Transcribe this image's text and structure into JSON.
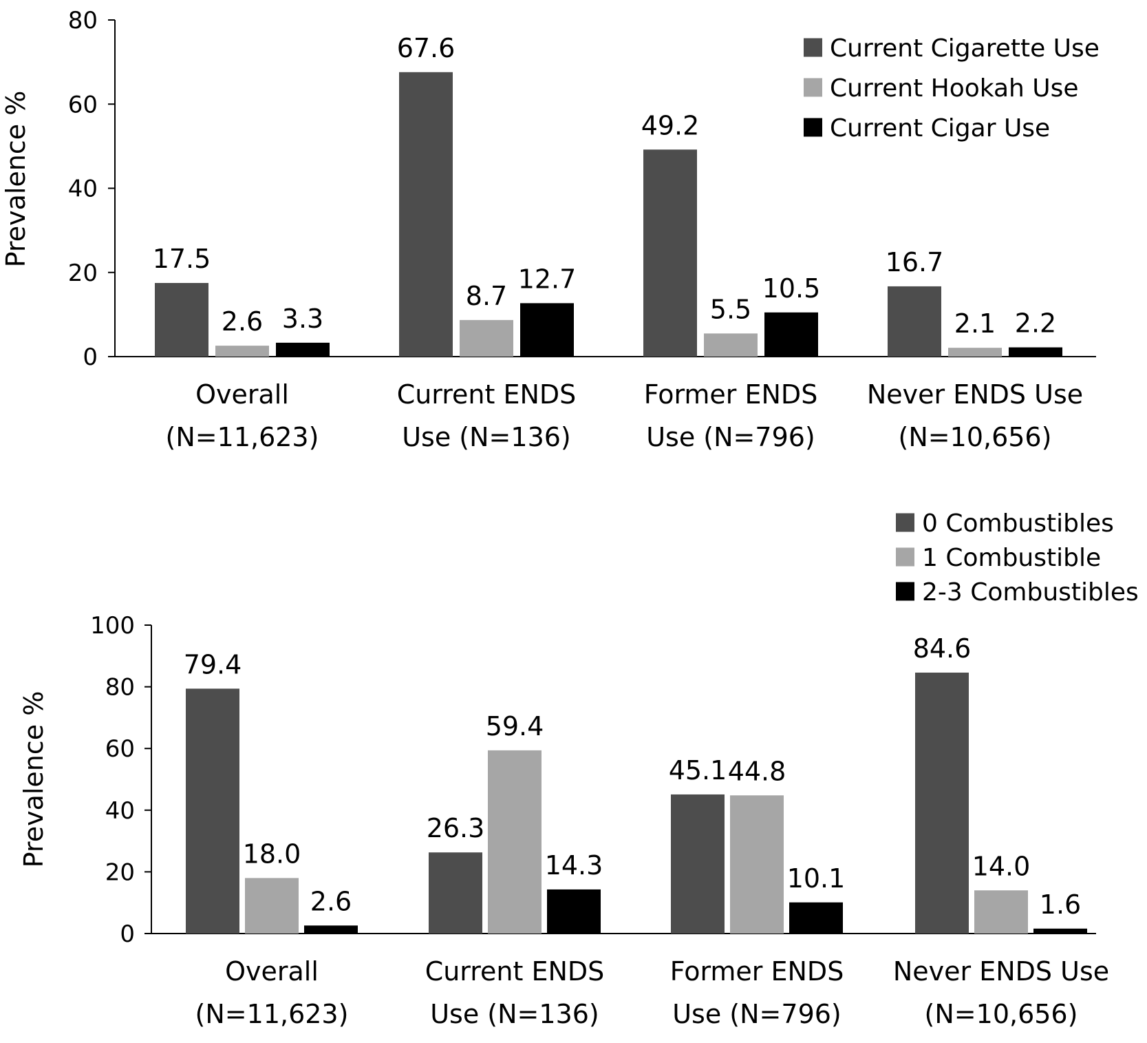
{
  "chart_data": [
    {
      "type": "bar",
      "ylabel": "Prevalence %",
      "ylim": [
        0,
        80
      ],
      "yticks": [
        0,
        20,
        40,
        60,
        80
      ],
      "grid": false,
      "legend_position": "top-right",
      "categories": [
        [
          "Overall",
          "(N=11,623)"
        ],
        [
          "Current ENDS",
          "Use (N=136)"
        ],
        [
          "Former ENDS",
          "Use (N=796)"
        ],
        [
          "Never ENDS Use",
          "(N=10,656)"
        ]
      ],
      "series": [
        {
          "name": "Current Cigarette Use",
          "color": "#4d4d4d",
          "values": [
            17.5,
            67.6,
            49.2,
            16.7
          ],
          "labels": [
            "17.5",
            "67.6",
            "49.2",
            "16.7"
          ]
        },
        {
          "name": "Current Hookah Use",
          "color": "#a6a6a6",
          "values": [
            2.6,
            8.7,
            5.5,
            2.1
          ],
          "labels": [
            "2.6",
            "8.7",
            "5.5",
            "2.1"
          ]
        },
        {
          "name": "Current Cigar Use",
          "color": "#000000",
          "values": [
            3.3,
            12.7,
            10.5,
            2.2
          ],
          "labels": [
            "3.3",
            "12.7",
            "10.5",
            "2.2"
          ]
        }
      ]
    },
    {
      "type": "bar",
      "ylabel": "Prevalence %",
      "ylim": [
        0,
        100
      ],
      "yticks": [
        0,
        20,
        40,
        60,
        80,
        100
      ],
      "grid": false,
      "legend_position": "top-right",
      "categories": [
        [
          "Overall",
          "(N=11,623)"
        ],
        [
          "Current ENDS",
          "Use (N=136)"
        ],
        [
          "Former ENDS",
          "Use (N=796)"
        ],
        [
          "Never ENDS Use",
          "(N=10,656)"
        ]
      ],
      "series": [
        {
          "name": "0 Combustibles",
          "color": "#4d4d4d",
          "values": [
            79.4,
            26.3,
            45.1,
            84.6
          ],
          "labels": [
            "79.4",
            "26.3",
            "45.1",
            "84.6"
          ]
        },
        {
          "name": "1 Combustible",
          "color": "#a6a6a6",
          "values": [
            18.0,
            59.4,
            44.8,
            14.0
          ],
          "labels": [
            "18.0",
            "59.4",
            "44.8",
            "14.0"
          ]
        },
        {
          "name": "2-3 Combustibles",
          "color": "#000000",
          "values": [
            2.6,
            14.3,
            10.1,
            1.6
          ],
          "labels": [
            "2.6",
            "14.3",
            "10.1",
            "1.6"
          ]
        }
      ]
    }
  ]
}
